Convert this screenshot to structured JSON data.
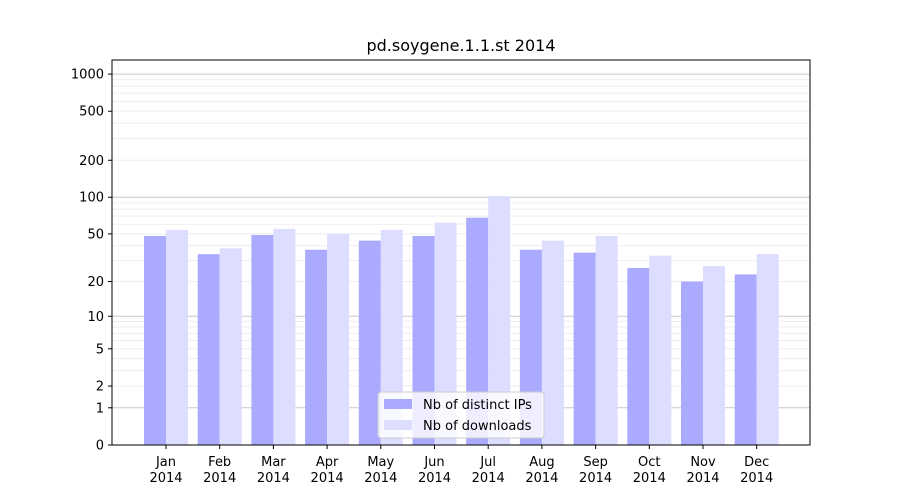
{
  "chart_data": {
    "type": "bar",
    "title": "pd.soygene.1.1.st 2014",
    "xlabel": "",
    "ylabel": "",
    "scale": "symlog",
    "ylim": [
      0,
      1300
    ],
    "categories": [
      "Jan\n2014",
      "Feb\n2014",
      "Mar\n2014",
      "Apr\n2014",
      "May\n2014",
      "Jun\n2014",
      "Jul\n2014",
      "Aug\n2014",
      "Sep\n2014",
      "Oct\n2014",
      "Nov\n2014",
      "Dec\n2014"
    ],
    "series": [
      {
        "name": "Nb of distinct IPs",
        "color": "#aaaaff",
        "values": [
          48,
          34,
          49,
          37,
          44,
          48,
          68,
          37,
          35,
          26,
          20,
          23
        ]
      },
      {
        "name": "Nb of downloads",
        "color": "#ddddff",
        "values": [
          54,
          38,
          55,
          50,
          54,
          62,
          102,
          44,
          48,
          33,
          27,
          34
        ]
      }
    ],
    "yticks": [
      0,
      1,
      2,
      5,
      10,
      20,
      50,
      100,
      200,
      500,
      1000
    ],
    "ytick_labels": [
      "0",
      "1",
      "2",
      "5",
      "10",
      "20",
      "50",
      "100",
      "200",
      "500",
      "1000"
    ],
    "grid": true,
    "legend_position": "bottom-center"
  }
}
